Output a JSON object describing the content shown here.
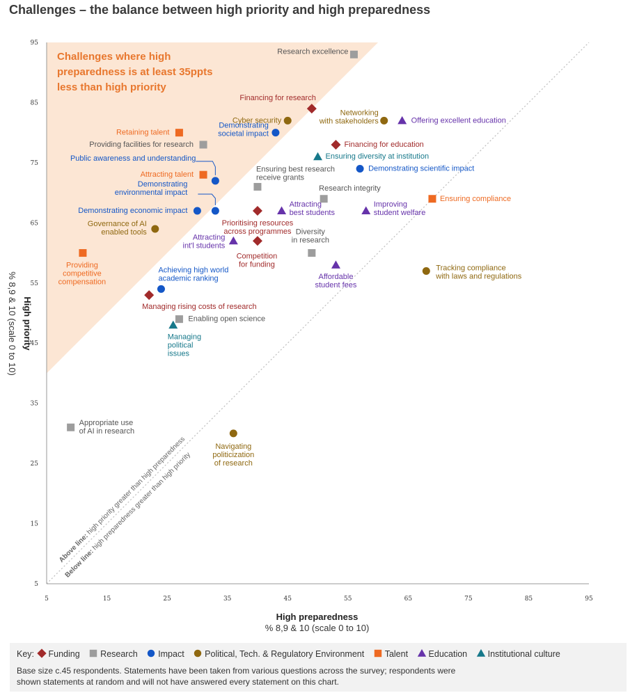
{
  "title": "Challenges – the balance between high priority and high preparedness",
  "colors": {
    "Funding": "#a12b2b",
    "Research": "#9d9d9d",
    "Impact": "#1457c7",
    "Political": "#8f6810",
    "Talent": "#ee6a22",
    "Education": "#6633aa",
    "Institutional": "#16788a",
    "zone": "#fce6d4",
    "zone_text": "#e8772e"
  },
  "chart_data": {
    "type": "scatter",
    "xlabel": "High preparedness",
    "xlabel_sub": "% 8,9 & 10 (scale 0 to 10)",
    "ylabel": "High priority",
    "ylabel_sub": "% 8,9 & 10 (scale 0 to 10)",
    "xlim": [
      5,
      95
    ],
    "ylim": [
      5,
      95
    ],
    "ticks": [
      5,
      15,
      25,
      35,
      45,
      55,
      65,
      75,
      85,
      95
    ],
    "grid": false,
    "zone_label": [
      "Challenges where high",
      "preparedness is at least 35ppts",
      "less than high priority"
    ],
    "diagonal_labels": {
      "above_bold": "Above line:",
      "above_text": " high priority greater than high preparedness",
      "below_bold": "Below line:",
      "below_text": " high preparedness greater than high priority"
    },
    "points": [
      {
        "label": "Research excellence",
        "cat": "Research",
        "x": 56,
        "y": 93
      },
      {
        "label": "Financing for research",
        "cat": "Funding",
        "x": 49,
        "y": 84
      },
      {
        "label": "Cyber security",
        "cat": "Political",
        "x": 45,
        "y": 82
      },
      {
        "label": "Networking with stakeholders",
        "cat": "Political",
        "x": 61,
        "y": 82
      },
      {
        "label": "Offering excellent education",
        "cat": "Education",
        "x": 64,
        "y": 82
      },
      {
        "label": "Demonstrating societal impact",
        "cat": "Impact",
        "x": 43,
        "y": 80
      },
      {
        "label": "Retaining talent",
        "cat": "Talent",
        "x": 27,
        "y": 80
      },
      {
        "label": "Providing facilities for research",
        "cat": "Research",
        "x": 31,
        "y": 78
      },
      {
        "label": "Financing for education",
        "cat": "Funding",
        "x": 53,
        "y": 78
      },
      {
        "label": "Ensuring diversity at institution",
        "cat": "Institutional",
        "x": 50,
        "y": 76
      },
      {
        "label": "Public awareness and understanding",
        "cat": "Impact",
        "x": 33,
        "y": 72
      },
      {
        "label": "Attracting talent",
        "cat": "Talent",
        "x": 31,
        "y": 73
      },
      {
        "label": "Demonstrating scientific impact",
        "cat": "Impact",
        "x": 57,
        "y": 74
      },
      {
        "label": "Ensuring best research receive grants",
        "cat": "Research",
        "x": 40,
        "y": 71
      },
      {
        "label": "Demonstrating environmental impact",
        "cat": "Impact",
        "x": 33,
        "y": 67
      },
      {
        "label": "Demonstrating economic impact",
        "cat": "Impact",
        "x": 30,
        "y": 67
      },
      {
        "label": "Research integrity",
        "cat": "Research",
        "x": 51,
        "y": 69
      },
      {
        "label": "Ensuring compliance",
        "cat": "Talent",
        "x": 69,
        "y": 69
      },
      {
        "label": "Prioritising resources across programmes",
        "cat": "Funding",
        "x": 40,
        "y": 67
      },
      {
        "label": "Attracting best students",
        "cat": "Education",
        "x": 44,
        "y": 67
      },
      {
        "label": "Improving student welfare",
        "cat": "Education",
        "x": 58,
        "y": 67
      },
      {
        "label": "Governance of AI enabled tools",
        "cat": "Political",
        "x": 23,
        "y": 64
      },
      {
        "label": "Attracting int'l students",
        "cat": "Education",
        "x": 36,
        "y": 62
      },
      {
        "label": "Competition for funding",
        "cat": "Funding",
        "x": 40,
        "y": 62
      },
      {
        "label": "Diversity in research",
        "cat": "Research",
        "x": 49,
        "y": 60
      },
      {
        "label": "Providing competitive compensation",
        "cat": "Talent",
        "x": 11,
        "y": 60
      },
      {
        "label": "Affordable student fees",
        "cat": "Education",
        "x": 53,
        "y": 58
      },
      {
        "label": "Tracking compliance with laws and regulations",
        "cat": "Political",
        "x": 68,
        "y": 57
      },
      {
        "label": "Achieving high world academic ranking",
        "cat": "Impact",
        "x": 24,
        "y": 54
      },
      {
        "label": "Managing rising costs of research",
        "cat": "Funding",
        "x": 22,
        "y": 53
      },
      {
        "label": "Enabling open science",
        "cat": "Research",
        "x": 27,
        "y": 49
      },
      {
        "label": "Managing political issues",
        "cat": "Institutional",
        "x": 26,
        "y": 48
      },
      {
        "label": "Appropriate use of AI in research",
        "cat": "Research",
        "x": 9,
        "y": 31
      },
      {
        "label": "Navigating politicization of research",
        "cat": "Political",
        "x": 36,
        "y": 30
      }
    ]
  },
  "key": {
    "prefix": "Key:",
    "items": [
      {
        "label": "Funding",
        "cat": "Funding",
        "icon": "diamond-icon"
      },
      {
        "label": "Research",
        "cat": "Research",
        "icon": "square-icon"
      },
      {
        "label": "Impact",
        "cat": "Impact",
        "icon": "circle-icon"
      },
      {
        "label": "Political, Tech. & Regulatory Environment",
        "cat": "Political",
        "icon": "circle-icon"
      },
      {
        "label": "Talent",
        "cat": "Talent",
        "icon": "square-icon"
      },
      {
        "label": "Education",
        "cat": "Education",
        "icon": "triangle-icon"
      },
      {
        "label": "Institutional culture",
        "cat": "Institutional",
        "icon": "triangle-icon"
      }
    ]
  },
  "note": "Base size c.45 respondents. Statements have been taken from various questions across the survey; respondents were shown statements at random and will not have answered every statement on this chart."
}
